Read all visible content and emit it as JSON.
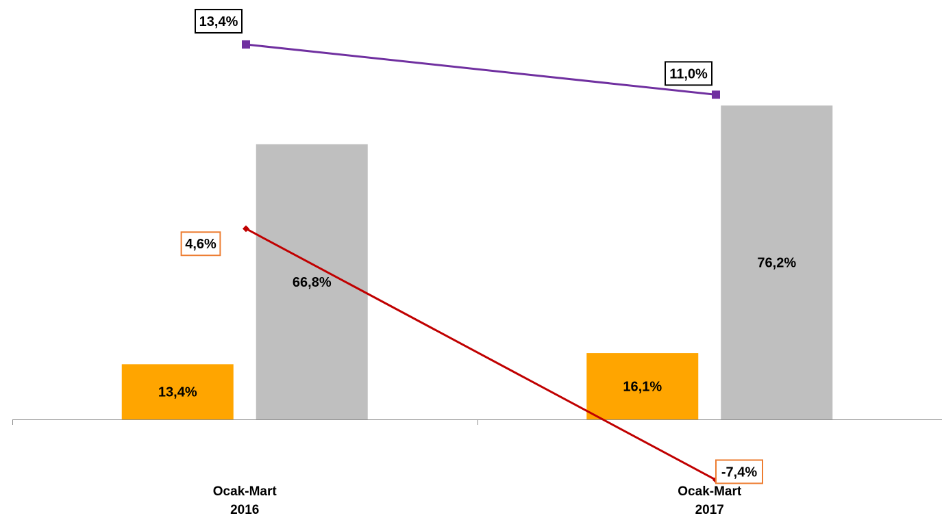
{
  "chart_data": {
    "type": "bar",
    "categories": [
      [
        "Ocak-Mart",
        "2016"
      ],
      [
        "Ocak-Mart",
        "2017"
      ]
    ],
    "series": [
      {
        "kind": "bar",
        "color": "#FFA500",
        "values": [
          13.4,
          16.1
        ],
        "labels": [
          "13,4%",
          "16,1%"
        ]
      },
      {
        "kind": "bar",
        "color": "#BFBFBF",
        "values": [
          66.8,
          76.2
        ],
        "labels": [
          "66,8%",
          "76,2%"
        ]
      },
      {
        "kind": "line",
        "color": "#7030A0",
        "marker": "square",
        "label_border": "#000000",
        "values": [
          13.4,
          11.0
        ],
        "labels": [
          "13,4%",
          "11,0%"
        ]
      },
      {
        "kind": "line",
        "color": "#C00000",
        "marker": "diamond",
        "label_border": "#ED7D31",
        "values": [
          4.6,
          -7.4
        ],
        "labels": [
          "4,6%",
          "-7,4%"
        ]
      }
    ],
    "grid": false,
    "legend": "none"
  }
}
